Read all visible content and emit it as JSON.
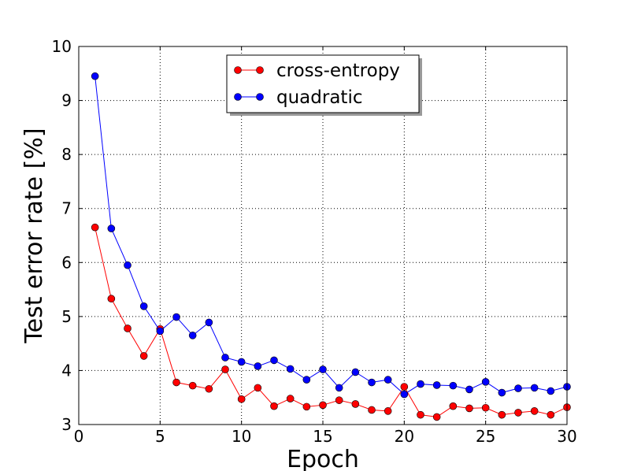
{
  "chart_data": {
    "type": "line",
    "title": "",
    "xlabel": "Epoch",
    "ylabel": "Test error rate [%]",
    "xlim": [
      0,
      30
    ],
    "ylim": [
      3,
      10
    ],
    "xticks": [
      0,
      5,
      10,
      15,
      20,
      25,
      30
    ],
    "yticks": [
      3,
      4,
      5,
      6,
      7,
      8,
      9,
      10
    ],
    "grid": true,
    "grid_style": "dotted",
    "legend_position": "top-center",
    "series": [
      {
        "name": "cross-entropy",
        "color": "#ff0000",
        "x": [
          1,
          2,
          3,
          4,
          5,
          6,
          7,
          8,
          9,
          10,
          11,
          12,
          13,
          14,
          15,
          16,
          17,
          18,
          19,
          20,
          21,
          22,
          23,
          24,
          25,
          26,
          27,
          28,
          29,
          30
        ],
        "y": [
          6.65,
          5.33,
          4.78,
          4.27,
          4.77,
          3.78,
          3.72,
          3.66,
          4.02,
          3.47,
          3.68,
          3.34,
          3.48,
          3.33,
          3.36,
          3.45,
          3.38,
          3.27,
          3.25,
          3.7,
          3.18,
          3.14,
          3.34,
          3.3,
          3.31,
          3.18,
          3.22,
          3.25,
          3.18,
          3.32
        ]
      },
      {
        "name": "quadratic",
        "color": "#0000ff",
        "x": [
          1,
          2,
          3,
          4,
          5,
          6,
          7,
          8,
          9,
          10,
          11,
          12,
          13,
          14,
          15,
          16,
          17,
          18,
          19,
          20,
          21,
          22,
          23,
          24,
          25,
          26,
          27,
          28,
          29,
          30
        ],
        "y": [
          9.45,
          6.63,
          5.95,
          5.19,
          4.73,
          4.99,
          4.65,
          4.89,
          4.24,
          4.16,
          4.08,
          4.19,
          4.03,
          3.83,
          4.02,
          3.68,
          3.97,
          3.78,
          3.83,
          3.56,
          3.75,
          3.73,
          3.72,
          3.65,
          3.79,
          3.59,
          3.67,
          3.68,
          3.62,
          3.7
        ]
      }
    ]
  }
}
